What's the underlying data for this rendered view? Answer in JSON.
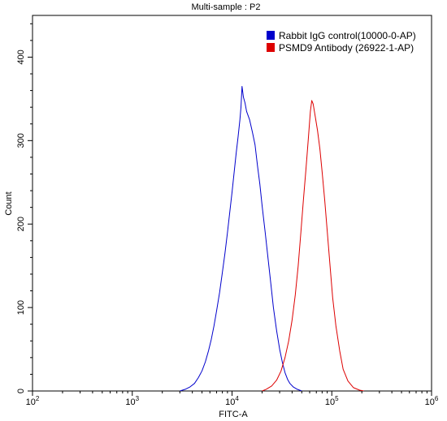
{
  "chart_data": {
    "type": "line",
    "title": "Multi-sample : P2",
    "xlabel": "FITC-A",
    "ylabel": "Count",
    "x_scale": "log",
    "xlim": [
      100,
      1000000
    ],
    "ylim": [
      0,
      450
    ],
    "grid": false,
    "legend_position": "top-right",
    "x_ticks": [
      {
        "value": 100,
        "base": "10",
        "exp": "2"
      },
      {
        "value": 1000,
        "base": "10",
        "exp": "3"
      },
      {
        "value": 10000,
        "base": "10",
        "exp": "4"
      },
      {
        "value": 100000,
        "base": "10",
        "exp": "5"
      },
      {
        "value": 1000000,
        "base": "10",
        "exp": "6"
      }
    ],
    "y_ticks": [
      0,
      100,
      200,
      300,
      400
    ],
    "series": [
      {
        "name": "Rabbit IgG control(10000-0-AP)",
        "color": "#0000cc",
        "points": [
          [
            3000,
            0
          ],
          [
            3400,
            2
          ],
          [
            3800,
            5
          ],
          [
            4200,
            9
          ],
          [
            4600,
            16
          ],
          [
            5000,
            24
          ],
          [
            5400,
            35
          ],
          [
            5800,
            48
          ],
          [
            6200,
            62
          ],
          [
            6600,
            78
          ],
          [
            7000,
            96
          ],
          [
            7500,
            118
          ],
          [
            8000,
            142
          ],
          [
            8500,
            165
          ],
          [
            9000,
            190
          ],
          [
            9500,
            215
          ],
          [
            10000,
            238
          ],
          [
            10500,
            262
          ],
          [
            11000,
            285
          ],
          [
            11500,
            305
          ],
          [
            12000,
            325
          ],
          [
            12300,
            340
          ],
          [
            12600,
            365
          ],
          [
            13000,
            352
          ],
          [
            13500,
            345
          ],
          [
            14000,
            335
          ],
          [
            15000,
            325
          ],
          [
            16000,
            310
          ],
          [
            17000,
            295
          ],
          [
            18000,
            270
          ],
          [
            19000,
            248
          ],
          [
            20000,
            222
          ],
          [
            21500,
            190
          ],
          [
            23000,
            158
          ],
          [
            24500,
            128
          ],
          [
            26000,
            100
          ],
          [
            28000,
            72
          ],
          [
            30000,
            50
          ],
          [
            32000,
            34
          ],
          [
            34000,
            22
          ],
          [
            36000,
            14
          ],
          [
            38000,
            9
          ],
          [
            41000,
            5
          ],
          [
            45000,
            2
          ],
          [
            50000,
            0
          ]
        ]
      },
      {
        "name": "PSMD9 Antibody (26922-1-AP)",
        "color": "#dd0000",
        "points": [
          [
            20000,
            0
          ],
          [
            22000,
            2
          ],
          [
            25000,
            6
          ],
          [
            28000,
            13
          ],
          [
            31000,
            24
          ],
          [
            34000,
            40
          ],
          [
            37000,
            60
          ],
          [
            40000,
            85
          ],
          [
            43000,
            115
          ],
          [
            46000,
            150
          ],
          [
            49000,
            190
          ],
          [
            52000,
            230
          ],
          [
            55000,
            265
          ],
          [
            58000,
            300
          ],
          [
            61000,
            335
          ],
          [
            63000,
            348
          ],
          [
            65000,
            344
          ],
          [
            68000,
            330
          ],
          [
            72000,
            312
          ],
          [
            76000,
            290
          ],
          [
            80000,
            262
          ],
          [
            85000,
            228
          ],
          [
            90000,
            192
          ],
          [
            96000,
            150
          ],
          [
            102000,
            112
          ],
          [
            110000,
            78
          ],
          [
            120000,
            48
          ],
          [
            130000,
            26
          ],
          [
            145000,
            12
          ],
          [
            165000,
            4
          ],
          [
            190000,
            1
          ],
          [
            210000,
            0
          ]
        ]
      }
    ]
  }
}
